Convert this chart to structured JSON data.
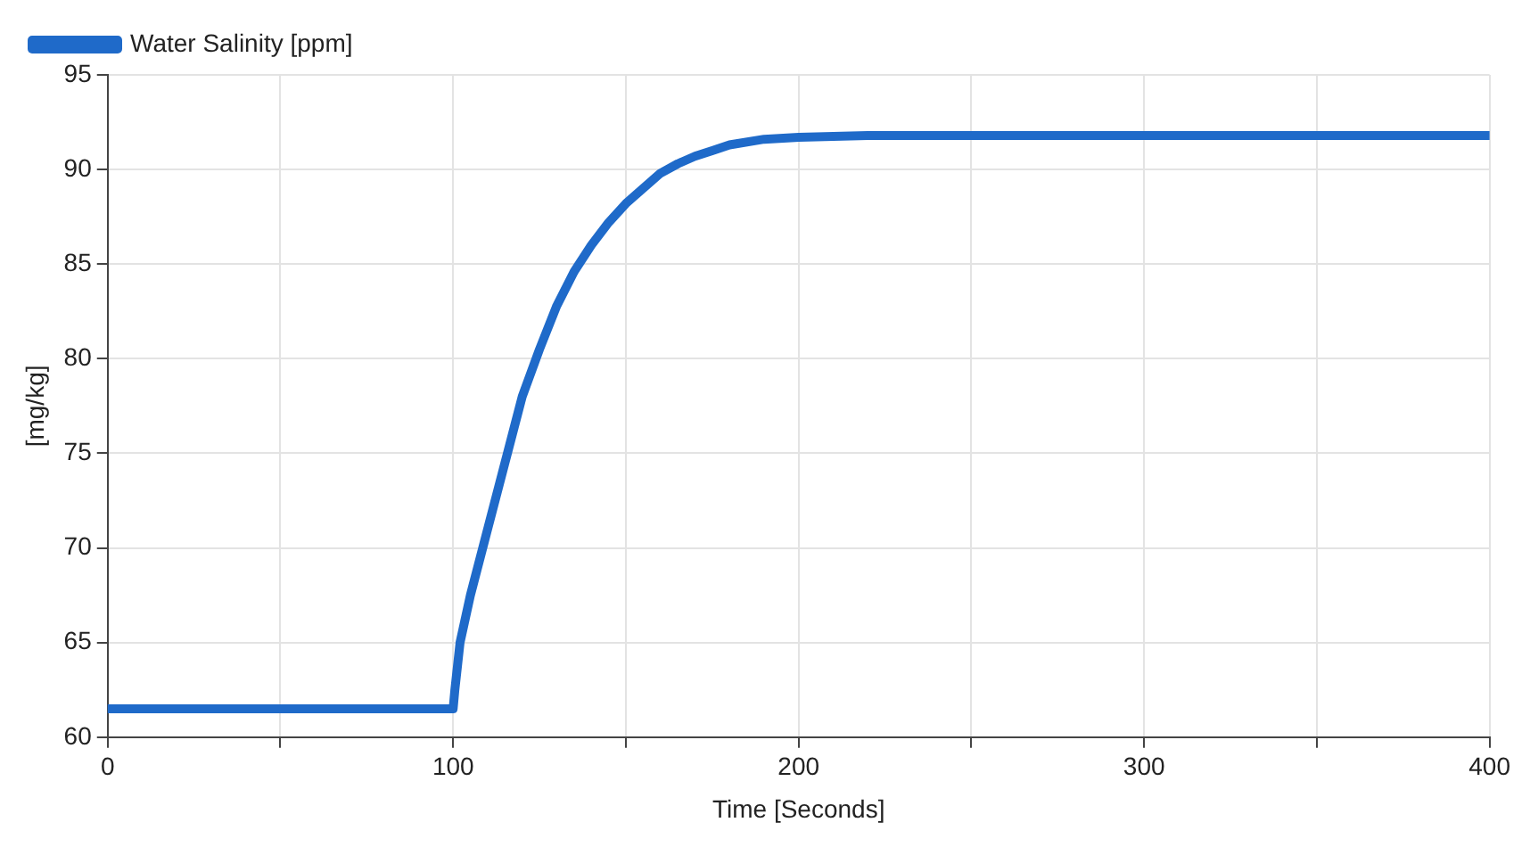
{
  "chart_data": {
    "type": "line",
    "xlabel": "Time [Seconds]",
    "ylabel": "[mg/kg]",
    "legend": "top left",
    "grid": true,
    "marker": "none",
    "line_style": "solid",
    "xlim": [
      0,
      400
    ],
    "xticks": [
      0,
      {
        "value": 50,
        "label": null
      },
      100,
      {
        "value": 150,
        "label": null
      },
      200,
      {
        "value": 250,
        "label": null
      },
      300,
      {
        "value": 350,
        "label": null
      },
      400
    ],
    "ylim": [
      60,
      95
    ],
    "yticks": [
      60,
      65,
      70,
      75,
      80,
      85,
      90,
      95
    ],
    "series": [
      {
        "name": "Water Salinity [ppm]",
        "color": "#1f6ac9",
        "x": [
          0,
          100,
          100.5,
          102,
          105,
          110,
          115,
          120,
          125,
          130,
          135,
          140,
          145,
          150,
          155,
          160,
          165,
          170,
          175,
          180,
          190,
          200,
          220,
          400
        ],
        "values": [
          61.5,
          61.5,
          62.5,
          65,
          67.5,
          71,
          74.5,
          78,
          80.5,
          82.8,
          84.6,
          86,
          87.2,
          88.2,
          89,
          89.8,
          90.3,
          90.7,
          91,
          91.3,
          91.6,
          91.7,
          91.8,
          91.8
        ]
      }
    ]
  }
}
